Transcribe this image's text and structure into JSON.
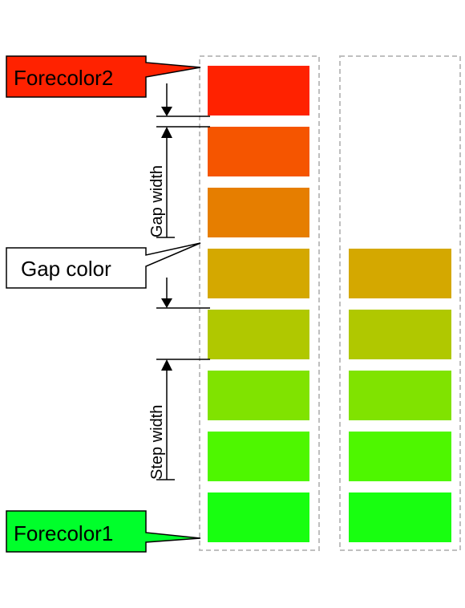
{
  "colors": {
    "forecolor1": "#00ff2b",
    "forecolor2": "#ff2200",
    "gap_color": "#ffffff",
    "outline": "#bfbfbf",
    "line": "#000000"
  },
  "callouts": {
    "forecolor2": "Forecolor2",
    "gap_color": "Gap color",
    "forecolor1": "Forecolor1"
  },
  "dimensions": {
    "gap_width": "Gap width",
    "step_width": "Step width"
  },
  "bar_full": {
    "steps_total": 8,
    "steps_lit": 8,
    "step_colors": [
      "#ff2200",
      "#f55500",
      "#e67e00",
      "#d4a800",
      "#b0c800",
      "#80e300",
      "#4ef700",
      "#18ff10"
    ]
  },
  "bar_partial": {
    "steps_total": 8,
    "steps_lit": 5,
    "step_colors": [
      "#ff2200",
      "#f55500",
      "#e67e00",
      "#d4a800",
      "#b0c800",
      "#80e300",
      "#4ef700",
      "#18ff10"
    ]
  }
}
